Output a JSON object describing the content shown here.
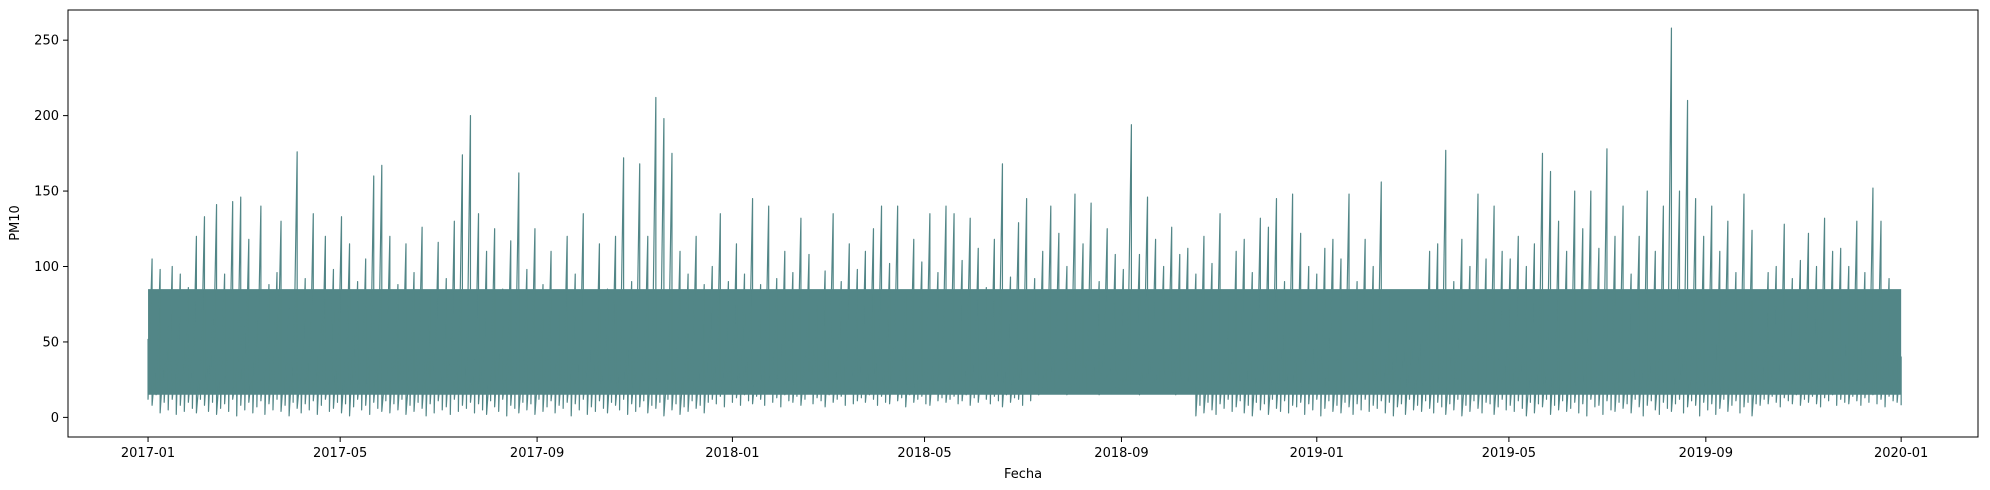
{
  "chart_data": {
    "type": "line",
    "title": "",
    "xlabel": "Fecha",
    "ylabel": "PM10",
    "grid": false,
    "legend": "none",
    "color": "#528687",
    "xlim": [
      "2016-11-12",
      "2020-02-18"
    ],
    "ylim": [
      -13,
      270
    ],
    "x_ticks": [
      "2017-01",
      "2017-05",
      "2017-09",
      "2018-01",
      "2018-05",
      "2018-09",
      "2019-01",
      "2019-05",
      "2019-09",
      "2020-01"
    ],
    "y_ticks": [
      0,
      50,
      100,
      150,
      200,
      250
    ],
    "series": [
      {
        "x_start": "2017-01-01",
        "x_end": "2020-01-01",
        "frequency": "daily",
        "typical_range": [
          15,
          85
        ],
        "values": [
          52,
          105,
          40,
          98,
          45,
          60,
          100,
          38,
          95,
          50,
          86,
          42,
          120,
          35,
          133,
          48,
          66,
          141,
          40,
          95,
          52,
          143,
          30,
          146,
          60,
          118,
          36,
          80,
          140,
          45,
          88,
          38,
          96,
          130,
          42,
          72,
          48,
          176,
          35,
          92,
          50,
          135,
          40,
          62,
          120,
          30,
          98,
          46,
          133,
          40,
          115,
          55,
          90,
          38,
          105,
          48,
          160,
          42,
          167,
          35,
          120,
          52,
          88,
          45,
          115,
          38,
          96,
          50,
          126,
          42,
          83,
          48,
          116,
          35,
          92,
          52,
          130,
          40,
          174,
          48,
          200,
          38,
          135,
          45,
          110,
          40,
          125,
          50,
          85,
          35,
          117,
          45,
          162,
          38,
          98,
          48,
          125,
          40,
          88,
          52,
          110,
          35,
          70,
          45,
          120,
          38,
          95,
          48,
          135,
          40,
          70,
          52,
          115,
          38,
          85,
          45,
          120,
          40,
          172,
          48,
          90,
          38,
          168,
          45,
          120,
          40,
          212,
          52,
          198,
          40,
          175,
          45,
          110,
          38,
          95,
          48,
          120,
          40,
          88,
          52,
          100,
          45,
          135,
          38,
          90,
          48,
          115,
          40,
          95,
          52,
          145,
          38,
          88,
          45,
          140,
          40,
          92,
          48,
          110,
          38,
          96,
          45,
          132,
          40,
          108,
          48,
          75,
          38,
          97,
          52,
          135,
          40,
          90,
          45,
          115,
          38,
          98,
          48,
          110,
          40,
          125,
          52,
          140,
          38,
          102,
          45,
          140,
          40,
          82,
          48,
          118,
          38,
          103,
          45,
          135,
          40,
          96,
          48,
          140,
          38,
          135,
          45,
          104,
          40,
          132,
          48,
          112,
          38,
          86,
          52,
          118,
          40,
          168,
          45,
          93,
          38,
          129,
          48,
          145,
          40,
          92,
          45,
          110,
          38,
          140,
          48,
          122,
          40,
          100,
          52,
          148,
          38,
          115,
          45,
          142,
          40,
          90,
          48,
          125,
          38,
          108,
          45,
          98,
          40,
          194,
          52,
          108,
          38,
          146,
          45,
          118,
          40,
          100,
          48,
          126,
          38,
          108,
          45,
          112,
          40,
          95,
          48,
          120,
          38,
          102,
          45,
          135,
          40,
          80,
          48,
          110,
          38,
          118,
          45,
          96,
          40,
          132,
          52,
          126,
          38,
          145,
          45,
          90,
          40,
          148,
          48,
          122,
          38,
          100,
          45,
          95,
          40,
          112,
          52,
          118,
          38,
          105,
          45,
          148,
          40,
          90,
          48,
          118,
          38,
          100,
          45,
          156,
          40,
          80,
          52,
          70,
          38,
          65,
          45,
          68,
          40,
          78,
          48,
          110,
          38,
          115,
          45,
          177,
          40,
          90,
          52,
          118,
          38,
          100,
          45,
          148,
          40,
          105,
          48,
          140,
          38,
          110,
          45,
          105,
          40,
          120,
          48,
          100,
          38,
          115,
          45,
          175,
          40,
          163,
          48,
          130,
          38,
          110,
          45,
          150,
          40,
          125,
          52,
          150,
          38,
          112,
          45,
          178,
          40,
          120,
          48,
          140,
          38,
          95,
          45,
          120,
          40,
          150,
          48,
          110,
          38,
          140,
          45,
          258,
          40,
          150,
          52,
          210,
          38,
          145,
          45,
          120,
          40,
          140,
          48,
          110,
          38,
          130,
          45,
          96,
          40,
          148,
          48,
          124,
          38,
          80,
          45,
          96,
          40,
          100,
          48,
          128,
          38,
          92,
          45,
          104,
          40,
          122,
          48,
          100,
          38,
          132,
          45,
          110,
          40,
          112,
          48,
          100,
          38,
          130,
          45,
          96,
          40,
          152,
          48,
          130,
          38,
          92,
          45,
          50,
          40
        ],
        "lows": [
          12,
          8,
          15,
          3,
          10,
          5,
          12,
          2,
          8,
          4,
          10,
          6,
          3,
          12,
          8,
          4,
          10,
          2,
          6,
          9,
          4,
          12,
          1,
          8,
          5,
          10,
          3,
          7,
          11,
          2,
          9,
          5,
          12,
          4,
          8,
          1,
          10,
          6,
          3,
          9,
          5,
          11,
          2,
          8,
          12,
          4,
          6,
          10,
          3,
          9,
          1,
          7,
          12,
          5,
          8,
          2,
          10,
          6,
          4,
          11,
          3,
          9,
          5,
          12,
          2,
          8,
          4,
          10,
          6,
          1,
          9,
          3,
          11,
          5,
          7,
          2,
          12,
          4,
          8,
          6,
          10,
          3,
          9,
          5,
          2,
          11,
          7,
          4,
          12,
          1,
          8,
          6,
          3,
          10,
          5,
          9,
          2,
          12,
          4,
          7,
          11,
          3,
          8,
          6,
          10,
          1,
          9,
          5,
          12,
          2,
          7,
          4,
          11,
          6,
          3,
          10,
          8,
          5,
          12,
          2,
          9,
          4,
          7,
          11,
          3,
          8,
          6,
          10,
          1,
          12,
          5,
          9,
          2,
          7,
          4,
          11,
          6,
          8,
          3,
          10,
          12,
          9,
          14,
          7,
          16,
          10,
          13,
          8,
          15,
          11,
          9,
          14,
          12,
          8,
          16,
          10,
          13,
          7,
          15,
          11,
          10,
          14,
          8,
          12,
          16,
          9,
          13,
          11,
          7,
          15,
          10,
          12,
          14,
          8,
          16,
          9,
          11,
          13,
          10,
          15,
          12,
          8,
          14,
          10,
          9,
          16,
          11,
          13,
          7,
          15,
          10,
          12,
          14,
          9,
          8,
          16,
          11,
          13,
          10,
          12,
          14,
          9,
          11,
          15,
          8,
          13,
          10,
          16,
          12,
          9,
          14,
          11,
          7,
          15,
          10,
          13,
          12,
          8,
          16,
          11,
          18,
          15,
          20,
          16,
          22,
          17,
          19,
          21,
          15,
          18,
          20,
          16,
          23,
          17,
          19,
          22,
          15,
          18,
          21,
          16,
          20,
          18,
          16,
          22,
          17,
          19,
          15,
          21,
          18,
          20,
          16,
          23,
          17,
          19,
          22,
          15,
          18,
          21,
          16,
          20,
          1,
          8,
          3,
          10,
          5,
          2,
          9,
          6,
          12,
          4,
          7,
          11,
          3,
          8,
          1,
          10,
          5,
          9,
          2,
          12,
          6,
          4,
          11,
          3,
          8,
          7,
          10,
          2,
          9,
          5,
          12,
          1,
          6,
          11,
          4,
          8,
          3,
          10,
          7,
          2,
          9,
          5,
          12,
          4,
          8,
          6,
          11,
          3,
          10,
          1,
          7,
          9,
          2,
          12,
          5,
          8,
          4,
          11,
          6,
          3,
          10,
          7,
          2,
          9,
          5,
          12,
          1,
          8,
          4,
          11,
          6,
          3,
          10,
          9,
          2,
          7,
          12,
          5,
          8,
          4,
          11,
          6,
          1,
          10,
          3,
          9,
          7,
          12,
          2,
          8,
          5,
          11,
          4,
          6,
          10,
          3,
          9,
          1,
          12,
          7,
          8,
          2,
          11,
          5,
          4,
          10,
          6,
          9,
          3,
          12,
          7,
          1,
          8,
          11,
          5,
          2,
          10,
          6,
          4,
          9,
          12,
          3,
          7,
          11,
          8,
          1,
          10,
          5,
          9,
          2,
          6,
          12,
          4,
          8,
          11,
          3,
          7,
          10,
          1,
          9,
          8,
          12,
          9,
          14,
          10,
          7,
          13,
          11,
          9,
          15,
          8,
          12,
          10,
          14,
          9,
          7,
          13,
          11,
          15,
          8,
          12,
          10,
          9,
          14,
          11,
          8,
          13,
          10,
          15,
          9,
          12,
          7,
          14,
          11,
          10,
          8,
          13,
          9,
          15,
          12,
          11,
          14,
          10,
          8,
          13,
          12,
          9,
          15,
          11,
          7,
          14,
          10,
          12,
          9,
          2,
          10
        ]
      }
    ]
  }
}
